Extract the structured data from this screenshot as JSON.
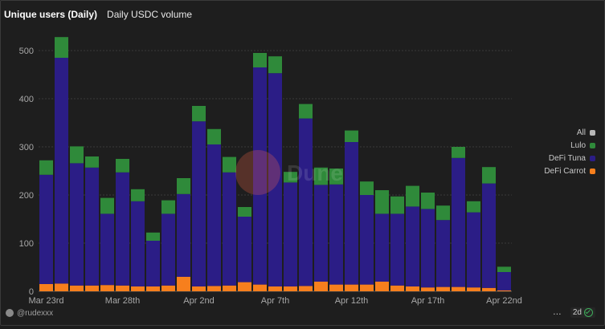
{
  "tabs": [
    {
      "label": "Unique users (Daily)",
      "active": true
    },
    {
      "label": "Daily USDC volume",
      "active": false
    }
  ],
  "watermark": "Dune",
  "legend": [
    {
      "label": "All",
      "color": "#b8b8b8"
    },
    {
      "label": "Lulo",
      "color": "#2f8a3a"
    },
    {
      "label": "DeFi Tuna",
      "color": "#2b1d86"
    },
    {
      "label": "DeFi Carrot",
      "color": "#f77f1d"
    }
  ],
  "footer": {
    "author": "@rudexxx",
    "more_label": "…",
    "age": "2d"
  },
  "chart_data": {
    "type": "bar",
    "stacked": true,
    "categories": [
      "2025-03-23",
      "2025-03-24",
      "2025-03-25",
      "2025-03-26",
      "2025-03-27",
      "2025-03-28",
      "2025-03-29",
      "2025-03-30",
      "2025-03-31",
      "2025-04-01",
      "2025-04-02",
      "2025-04-03",
      "2025-04-04",
      "2025-04-05",
      "2025-04-06",
      "2025-04-07",
      "2025-04-08",
      "2025-04-09",
      "2025-04-10",
      "2025-04-11",
      "2025-04-12",
      "2025-04-13",
      "2025-04-14",
      "2025-04-15",
      "2025-04-16",
      "2025-04-17",
      "2025-04-18",
      "2025-04-19",
      "2025-04-20",
      "2025-04-21",
      "2025-04-22"
    ],
    "x_tick_labels": [
      {
        "index": 0,
        "label": "Mar 23rd"
      },
      {
        "index": 5,
        "label": "Mar 28th"
      },
      {
        "index": 10,
        "label": "Apr 2nd"
      },
      {
        "index": 15,
        "label": "Apr 7th"
      },
      {
        "index": 20,
        "label": "Apr 12th"
      },
      {
        "index": 25,
        "label": "Apr 17th"
      },
      {
        "index": 30,
        "label": "Apr 22nd"
      }
    ],
    "y_ticks": [
      0,
      100,
      200,
      300,
      400,
      500
    ],
    "ylim": [
      0,
      500
    ],
    "grid": true,
    "legend_position": "right",
    "series": [
      {
        "name": "DeFi Carrot",
        "color": "#f77f1d",
        "values": [
          15,
          16,
          12,
          12,
          13,
          12,
          10,
          10,
          12,
          30,
          10,
          11,
          12,
          19,
          14,
          10,
          10,
          11,
          20,
          14,
          14,
          14,
          20,
          12,
          10,
          8,
          9,
          9,
          8,
          7,
          2
        ]
      },
      {
        "name": "DeFi Tuna",
        "color": "#2b1d86",
        "values": [
          227,
          469,
          254,
          245,
          148,
          235,
          177,
          95,
          149,
          172,
          343,
          294,
          235,
          136,
          451,
          443,
          216,
          348,
          201,
          208,
          296,
          186,
          141,
          149,
          166,
          163,
          139,
          268,
          156,
          217,
          38
        ]
      },
      {
        "name": "Lulo",
        "color": "#2f8a3a",
        "values": [
          30,
          43,
          35,
          23,
          33,
          28,
          25,
          17,
          28,
          33,
          32,
          32,
          32,
          20,
          30,
          35,
          22,
          30,
          36,
          33,
          24,
          28,
          49,
          36,
          43,
          34,
          30,
          23,
          23,
          34,
          11
        ]
      }
    ]
  }
}
